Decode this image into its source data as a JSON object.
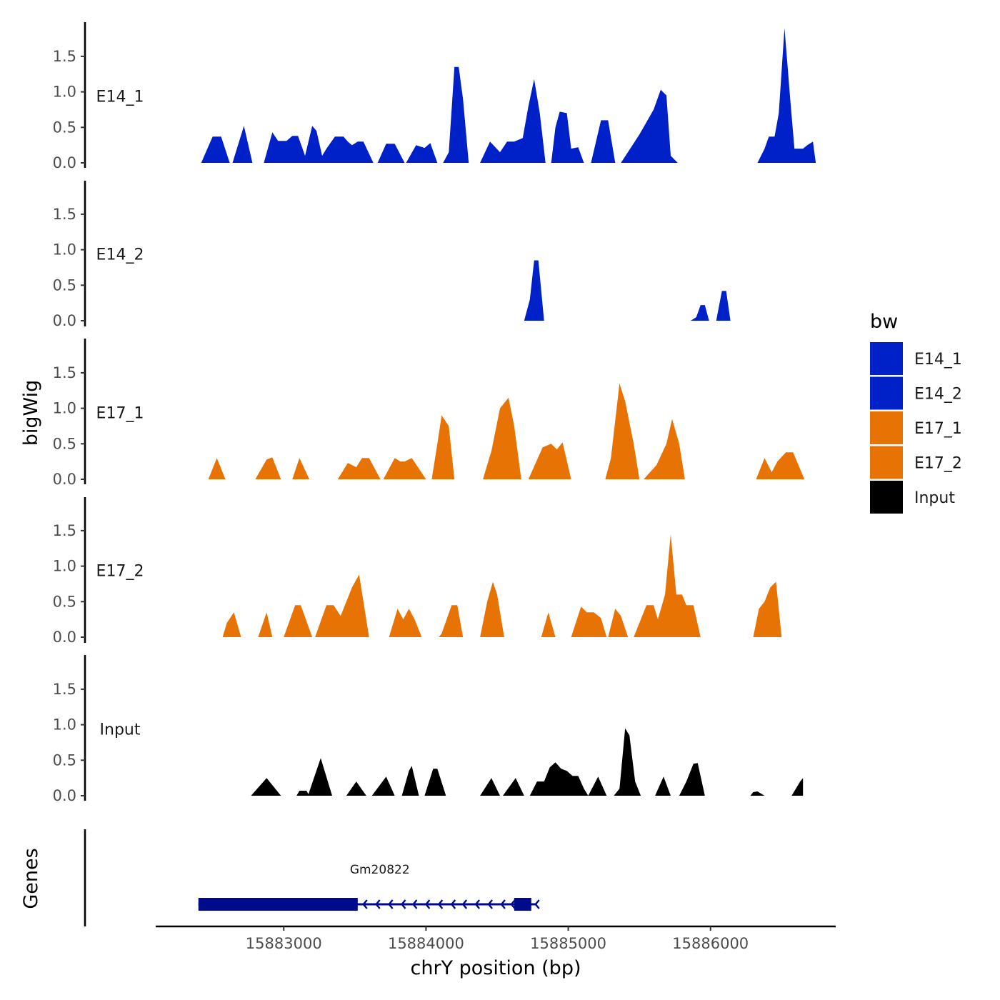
{
  "chart_data": {
    "type": "area",
    "ylabel": "bigWig",
    "xlabel": "chrY position (bp)",
    "xlim": [
      15882100,
      15886880
    ],
    "ylim": [
      0,
      2.0
    ],
    "y_ticks": [
      0.0,
      0.5,
      1.0,
      1.5
    ],
    "y_tick_labels": [
      "0.0",
      "0.5",
      "1.0",
      "1.5"
    ],
    "x_ticks": [
      15883000,
      15884000,
      15885000,
      15886000
    ],
    "x_tick_labels": [
      "15883000",
      "15884000",
      "15885000",
      "15886000"
    ],
    "legend": {
      "title": "bw",
      "position": "right",
      "items": [
        {
          "label": "E14_1",
          "color": "#0020C8"
        },
        {
          "label": "E14_2",
          "color": "#0020C8"
        },
        {
          "label": "E17_1",
          "color": "#E87305"
        },
        {
          "label": "E17_2",
          "color": "#E87305"
        },
        {
          "label": "Input",
          "color": "#000000"
        }
      ]
    },
    "series": [
      {
        "name": "E14_1",
        "color": "#0020C8",
        "peaks": [
          {
            "x": [
              15882420,
              15882500,
              15882560,
              15882620
            ],
            "y": [
              0,
              0.37,
              0.37,
              0
            ]
          },
          {
            "x": [
              15882640,
              15882720,
              15882780
            ],
            "y": [
              0,
              0.52,
              0
            ]
          },
          {
            "x": [
              15882860,
              15882920,
              15882960,
              15883020,
              15883060,
              15883100,
              15883150,
              15883200,
              15883230,
              15883270,
              15883300,
              15883360,
              15883420,
              15883450,
              15883480,
              15883520,
              15883560,
              15883630
            ],
            "y": [
              0,
              0.43,
              0.31,
              0.31,
              0.38,
              0.38,
              0.1,
              0.52,
              0.45,
              0.1,
              0.2,
              0.37,
              0.37,
              0.3,
              0.25,
              0.3,
              0.3,
              0
            ]
          },
          {
            "x": [
              15883660,
              15883720,
              15883780,
              15883850
            ],
            "y": [
              0,
              0.27,
              0.27,
              0
            ]
          },
          {
            "x": [
              15883860,
              15883930,
              15883990,
              15884030,
              15884080
            ],
            "y": [
              0,
              0.25,
              0.21,
              0.28,
              0
            ]
          },
          {
            "x": [
              15884120,
              15884160,
              15884200,
              15884230,
              15884260,
              15884300
            ],
            "y": [
              0,
              0.15,
              1.35,
              1.35,
              0.9,
              0
            ]
          },
          {
            "x": [
              15884380,
              15884450,
              15884520,
              15884570,
              15884620,
              15884680,
              15884720,
              15884760,
              15884800,
              15884840
            ],
            "y": [
              0,
              0.3,
              0.15,
              0.3,
              0.3,
              0.35,
              0.8,
              1.18,
              0.7,
              0
            ]
          },
          {
            "x": [
              15884880,
              15884910,
              15884940,
              15884990,
              15885020,
              15885070,
              15885110
            ],
            "y": [
              0,
              0.5,
              0.72,
              0.7,
              0.2,
              0.22,
              0
            ]
          },
          {
            "x": [
              15885160,
              15885230,
              15885280,
              15885330
            ],
            "y": [
              0,
              0.6,
              0.6,
              0
            ]
          },
          {
            "x": [
              15885370,
              15885500,
              15885600,
              15885650,
              15885690,
              15885720,
              15885770
            ],
            "y": [
              0,
              0.4,
              0.75,
              1.03,
              0.95,
              0.1,
              0
            ]
          },
          {
            "x": [
              15886330,
              15886380,
              15886410,
              15886450,
              15886480,
              15886520,
              15886560,
              15886590,
              15886620,
              15886650,
              15886680,
              15886720,
              15886740
            ],
            "y": [
              0,
              0.2,
              0.37,
              0.37,
              0.7,
              1.9,
              0.9,
              0.2,
              0.2,
              0.2,
              0.25,
              0.3,
              0
            ]
          }
        ]
      },
      {
        "name": "E14_2",
        "color": "#0020C8",
        "peaks": [
          {
            "x": [
              15884690,
              15884730,
              15884760,
              15884790,
              15884830
            ],
            "y": [
              0,
              0.3,
              0.85,
              0.85,
              0
            ]
          },
          {
            "x": [
              15885860,
              15885900,
              15885930,
              15885960,
              15885990
            ],
            "y": [
              0,
              0.05,
              0.22,
              0.22,
              0
            ]
          },
          {
            "x": [
              15886040,
              15886080,
              15886110,
              15886140
            ],
            "y": [
              0,
              0.42,
              0.42,
              0
            ]
          }
        ]
      },
      {
        "name": "E17_1",
        "color": "#E87305",
        "peaks": [
          {
            "x": [
              15882470,
              15882530,
              15882590
            ],
            "y": [
              0,
              0.3,
              0
            ]
          },
          {
            "x": [
              15882800,
              15882880,
              15882920,
              15882980
            ],
            "y": [
              0,
              0.28,
              0.31,
              0
            ]
          },
          {
            "x": [
              15883060,
              15883110,
              15883180
            ],
            "y": [
              0,
              0.3,
              0
            ]
          },
          {
            "x": [
              15883380,
              15883450,
              15883510,
              15883550,
              15883600,
              15883680
            ],
            "y": [
              0,
              0.23,
              0.17,
              0.3,
              0.3,
              0
            ]
          },
          {
            "x": [
              15883700,
              15883780,
              15883820,
              15883850,
              15883900,
              15883950,
              15884000
            ],
            "y": [
              0,
              0.3,
              0.25,
              0.25,
              0.3,
              0.15,
              0
            ]
          },
          {
            "x": [
              15884040,
              15884080,
              15884110,
              15884160,
              15884200
            ],
            "y": [
              0,
              0.5,
              0.9,
              0.75,
              0
            ]
          },
          {
            "x": [
              15884400,
              15884460,
              15884520,
              15884580,
              15884620,
              15884670
            ],
            "y": [
              0,
              0.4,
              1.0,
              1.15,
              0.75,
              0
            ]
          },
          {
            "x": [
              15884720,
              15884820,
              15884880,
              15884920,
              15884960,
              15885020
            ],
            "y": [
              0,
              0.45,
              0.5,
              0.42,
              0.52,
              0
            ]
          },
          {
            "x": [
              15885260,
              15885300,
              15885360,
              15885400,
              15885460,
              15885500
            ],
            "y": [
              0,
              0.3,
              1.35,
              1.1,
              0.5,
              0
            ]
          },
          {
            "x": [
              15885530,
              15885620,
              15885690,
              15885730,
              15885780,
              15885820
            ],
            "y": [
              0,
              0.2,
              0.5,
              0.85,
              0.5,
              0
            ]
          },
          {
            "x": [
              15886320,
              15886380,
              15886430,
              15886470,
              15886530,
              15886580,
              15886660
            ],
            "y": [
              0,
              0.3,
              0.1,
              0.25,
              0.38,
              0.38,
              0
            ]
          }
        ]
      },
      {
        "name": "E17_2",
        "color": "#E87305",
        "peaks": [
          {
            "x": [
              15882570,
              15882600,
              15882650,
              15882700
            ],
            "y": [
              0,
              0.2,
              0.35,
              0
            ]
          },
          {
            "x": [
              15882820,
              15882880,
              15882920
            ],
            "y": [
              0,
              0.35,
              0
            ]
          },
          {
            "x": [
              15883000,
              15883080,
              15883120,
              15883200
            ],
            "y": [
              0,
              0.45,
              0.45,
              0
            ]
          },
          {
            "x": [
              15883220,
              15883300,
              15883350,
              15883400,
              15883480,
              15883530,
              15883600
            ],
            "y": [
              0,
              0.45,
              0.45,
              0.3,
              0.7,
              0.88,
              0
            ]
          },
          {
            "x": [
              15883740,
              15883800,
              15883840,
              15883880,
              15883920,
              15883970
            ],
            "y": [
              0,
              0.4,
              0.25,
              0.4,
              0.25,
              0
            ]
          },
          {
            "x": [
              15884090,
              15884110,
              15884180,
              15884220,
              15884260
            ],
            "y": [
              0,
              0.05,
              0.45,
              0.45,
              0
            ]
          },
          {
            "x": [
              15884380,
              15884430,
              15884470,
              15884500,
              15884550
            ],
            "y": [
              0,
              0.5,
              0.78,
              0.6,
              0
            ]
          },
          {
            "x": [
              15884810,
              15884860,
              15884910
            ],
            "y": [
              0,
              0.35,
              0
            ]
          },
          {
            "x": [
              15885020,
              15885090,
              15885130,
              15885180,
              15885230,
              15885270
            ],
            "y": [
              0,
              0.43,
              0.35,
              0.35,
              0.27,
              0
            ]
          },
          {
            "x": [
              15885280,
              15885330,
              15885370,
              15885420
            ],
            "y": [
              0,
              0.4,
              0.3,
              0
            ]
          },
          {
            "x": [
              15885460,
              15885550,
              15885600,
              15885630,
              15885680,
              15885720,
              15885760,
              15885800,
              15885830,
              15885880,
              15885930
            ],
            "y": [
              0,
              0.45,
              0.45,
              0.25,
              0.6,
              1.45,
              0.6,
              0.6,
              0.45,
              0.45,
              0
            ]
          },
          {
            "x": [
              15886300,
              15886340,
              15886380,
              15886420,
              15886460,
              15886500
            ],
            "y": [
              0,
              0.4,
              0.5,
              0.7,
              0.78,
              0
            ]
          }
        ]
      },
      {
        "name": "Input",
        "color": "#000000",
        "peaks": [
          {
            "x": [
              15882770,
              15882880,
              15882980
            ],
            "y": [
              0,
              0.25,
              0
            ]
          },
          {
            "x": [
              15883090,
              15883110,
              15883160,
              15883180
            ],
            "y": [
              0,
              0.07,
              0.07,
              0
            ]
          },
          {
            "x": [
              15883170,
              15883260,
              15883340
            ],
            "y": [
              0,
              0.53,
              0
            ]
          },
          {
            "x": [
              15883440,
              15883510,
              15883580
            ],
            "y": [
              0,
              0.2,
              0
            ]
          },
          {
            "x": [
              15883620,
              15883720,
              15883780
            ],
            "y": [
              0,
              0.27,
              0
            ]
          },
          {
            "x": [
              15883830,
              15883880,
              15883900,
              15883950
            ],
            "y": [
              0,
              0.35,
              0.42,
              0
            ]
          },
          {
            "x": [
              15883990,
              15884050,
              15884080,
              15884140
            ],
            "y": [
              0,
              0.38,
              0.38,
              0
            ]
          },
          {
            "x": [
              15884380,
              15884460,
              15884520
            ],
            "y": [
              0,
              0.25,
              0
            ]
          },
          {
            "x": [
              15884540,
              15884630,
              15884690
            ],
            "y": [
              0,
              0.25,
              0
            ]
          },
          {
            "x": [
              15884730,
              15884780,
              15884830,
              15884870,
              15884910,
              15884950,
              15884990,
              15885030,
              15885070,
              15885110,
              15885140
            ],
            "y": [
              0,
              0.2,
              0.2,
              0.4,
              0.47,
              0.38,
              0.35,
              0.28,
              0.28,
              0.1,
              0
            ]
          },
          {
            "x": [
              15885140,
              15885210,
              15885270
            ],
            "y": [
              0,
              0.27,
              0
            ]
          },
          {
            "x": [
              15885320,
              15885360,
              15885400,
              15885430,
              15885470,
              15885510
            ],
            "y": [
              0,
              0.1,
              0.95,
              0.85,
              0.2,
              0
            ]
          },
          {
            "x": [
              15885610,
              15885670,
              15885720
            ],
            "y": [
              0,
              0.27,
              0
            ]
          },
          {
            "x": [
              15885780,
              15885830,
              15885880,
              15885910,
              15885960
            ],
            "y": [
              0,
              0.2,
              0.45,
              0.46,
              0
            ]
          },
          {
            "x": [
              15886280,
              15886300,
              15886330,
              15886380
            ],
            "y": [
              0,
              0.05,
              0.06,
              0
            ]
          },
          {
            "x": [
              15886570,
              15886630,
              15886650
            ],
            "y": [
              0,
              0.2,
              0.25
            ]
          }
        ]
      }
    ],
    "genes_track": {
      "label": "Genes",
      "genes": [
        {
          "name": "Gm20822",
          "strand": "-",
          "start": 15882400,
          "end": 15884780,
          "color": "#000A8C",
          "exons": [
            [
              15882400,
              15883520
            ],
            [
              15884620,
              15884740
            ]
          ],
          "arrow_positions": [
            15883560,
            15883650,
            15883740,
            15883830,
            15883910,
            15884000,
            15884090,
            15884180,
            15884260,
            15884350,
            15884440,
            15884530,
            15884600,
            15884770
          ]
        }
      ]
    }
  }
}
